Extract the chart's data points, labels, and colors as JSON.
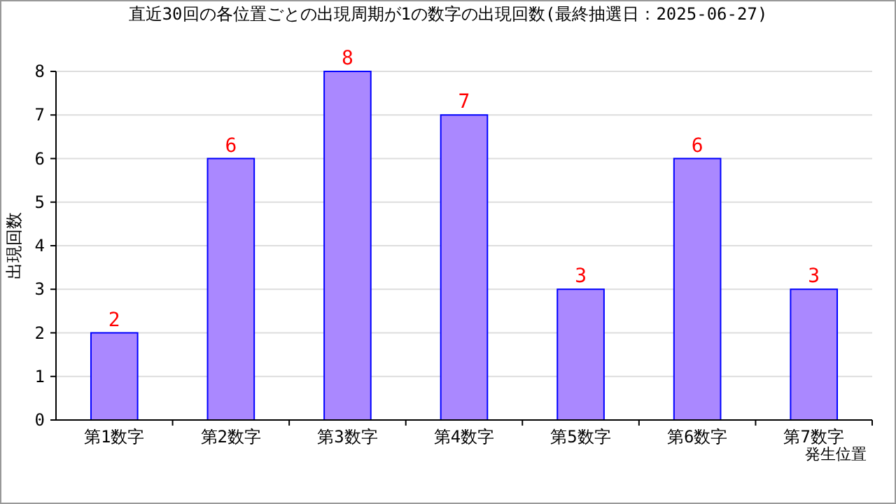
{
  "chart_data": {
    "type": "bar",
    "title": "直近30回の各位置ごとの出現周期が1の数字の出現回数(最終抽選日：2025-06-27)",
    "xlabel": "発生位置",
    "ylabel": "出現回数",
    "categories": [
      "第1数字",
      "第2数字",
      "第3数字",
      "第4数字",
      "第5数字",
      "第6数字",
      "第7数字"
    ],
    "series": [
      {
        "color": "#aa88ff",
        "values": [
          2,
          6,
          8,
          7,
          3,
          6,
          3
        ]
      }
    ],
    "ylim": [
      0,
      8
    ],
    "yticks": [
      0,
      1,
      2,
      3,
      4,
      5,
      6,
      7,
      8
    ],
    "grid": "y",
    "data_labels": true
  }
}
